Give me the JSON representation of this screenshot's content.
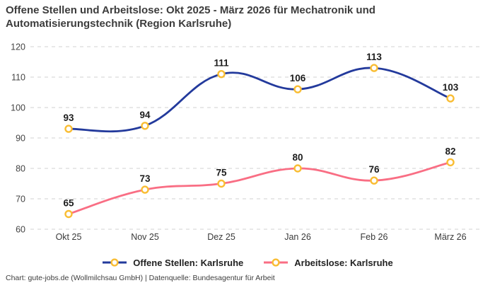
{
  "title": "Offene Stellen und Arbeitslose: Okt 2025 - März 2026 für Mechatronik und Automatisierungstechnik (Region Karlsruhe)",
  "attribution": "Chart: gute-jobs.de (Wollmilchsau GmbH) | Datenquelle: Bundesagentur für Arbeit",
  "chart_data": {
    "type": "line",
    "categories": [
      "Okt 25",
      "Nov 25",
      "Dez 25",
      "Jan 26",
      "Feb 26",
      "März 26"
    ],
    "series": [
      {
        "name": "Offene Stellen: Karlsruhe",
        "color": "#233A9C",
        "values": [
          93,
          94,
          111,
          106,
          113,
          103
        ]
      },
      {
        "name": "Arbeitslose: Karlsruhe",
        "color": "#F96E84",
        "values": [
          65,
          73,
          75,
          80,
          76,
          82
        ]
      }
    ],
    "marker": {
      "fill": "#FFFFFF",
      "ring_color": "#F9BD33"
    },
    "ylim": [
      60,
      120
    ],
    "yticks": [
      60,
      70,
      80,
      90,
      100,
      110,
      120
    ],
    "ytick_step": 10,
    "grid": "horizontal-dashed",
    "gridline_color": "#D1D1D1",
    "curve": "smooth",
    "legend_position": "bottom",
    "xlabel": "",
    "ylabel": ""
  }
}
